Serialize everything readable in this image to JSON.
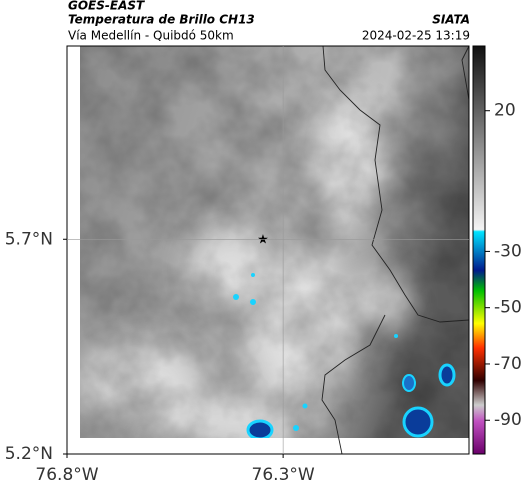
{
  "header": {
    "title": "GOES-EAST",
    "subtitle": "Temperatura de Brillo CH13",
    "region": "Vía Medellín - Quibdó 50km",
    "source": "SIATA",
    "datetime": "2024-02-25 13:19"
  },
  "map": {
    "xlim": [
      -76.8,
      -75.87
    ],
    "ylim": [
      5.2,
      6.15
    ],
    "xticks": [
      {
        "value": -76.8,
        "label": "76.8°W"
      },
      {
        "value": -76.3,
        "label": "76.3°W"
      }
    ],
    "yticks": [
      {
        "value": 5.7,
        "label": "5.7°N"
      },
      {
        "value": 5.2,
        "label": "5.2°N"
      }
    ]
  },
  "colorbar": {
    "lim": [
      -102,
      43
    ],
    "ticks": [
      20,
      -30,
      -50,
      -70,
      -90
    ]
  }
}
